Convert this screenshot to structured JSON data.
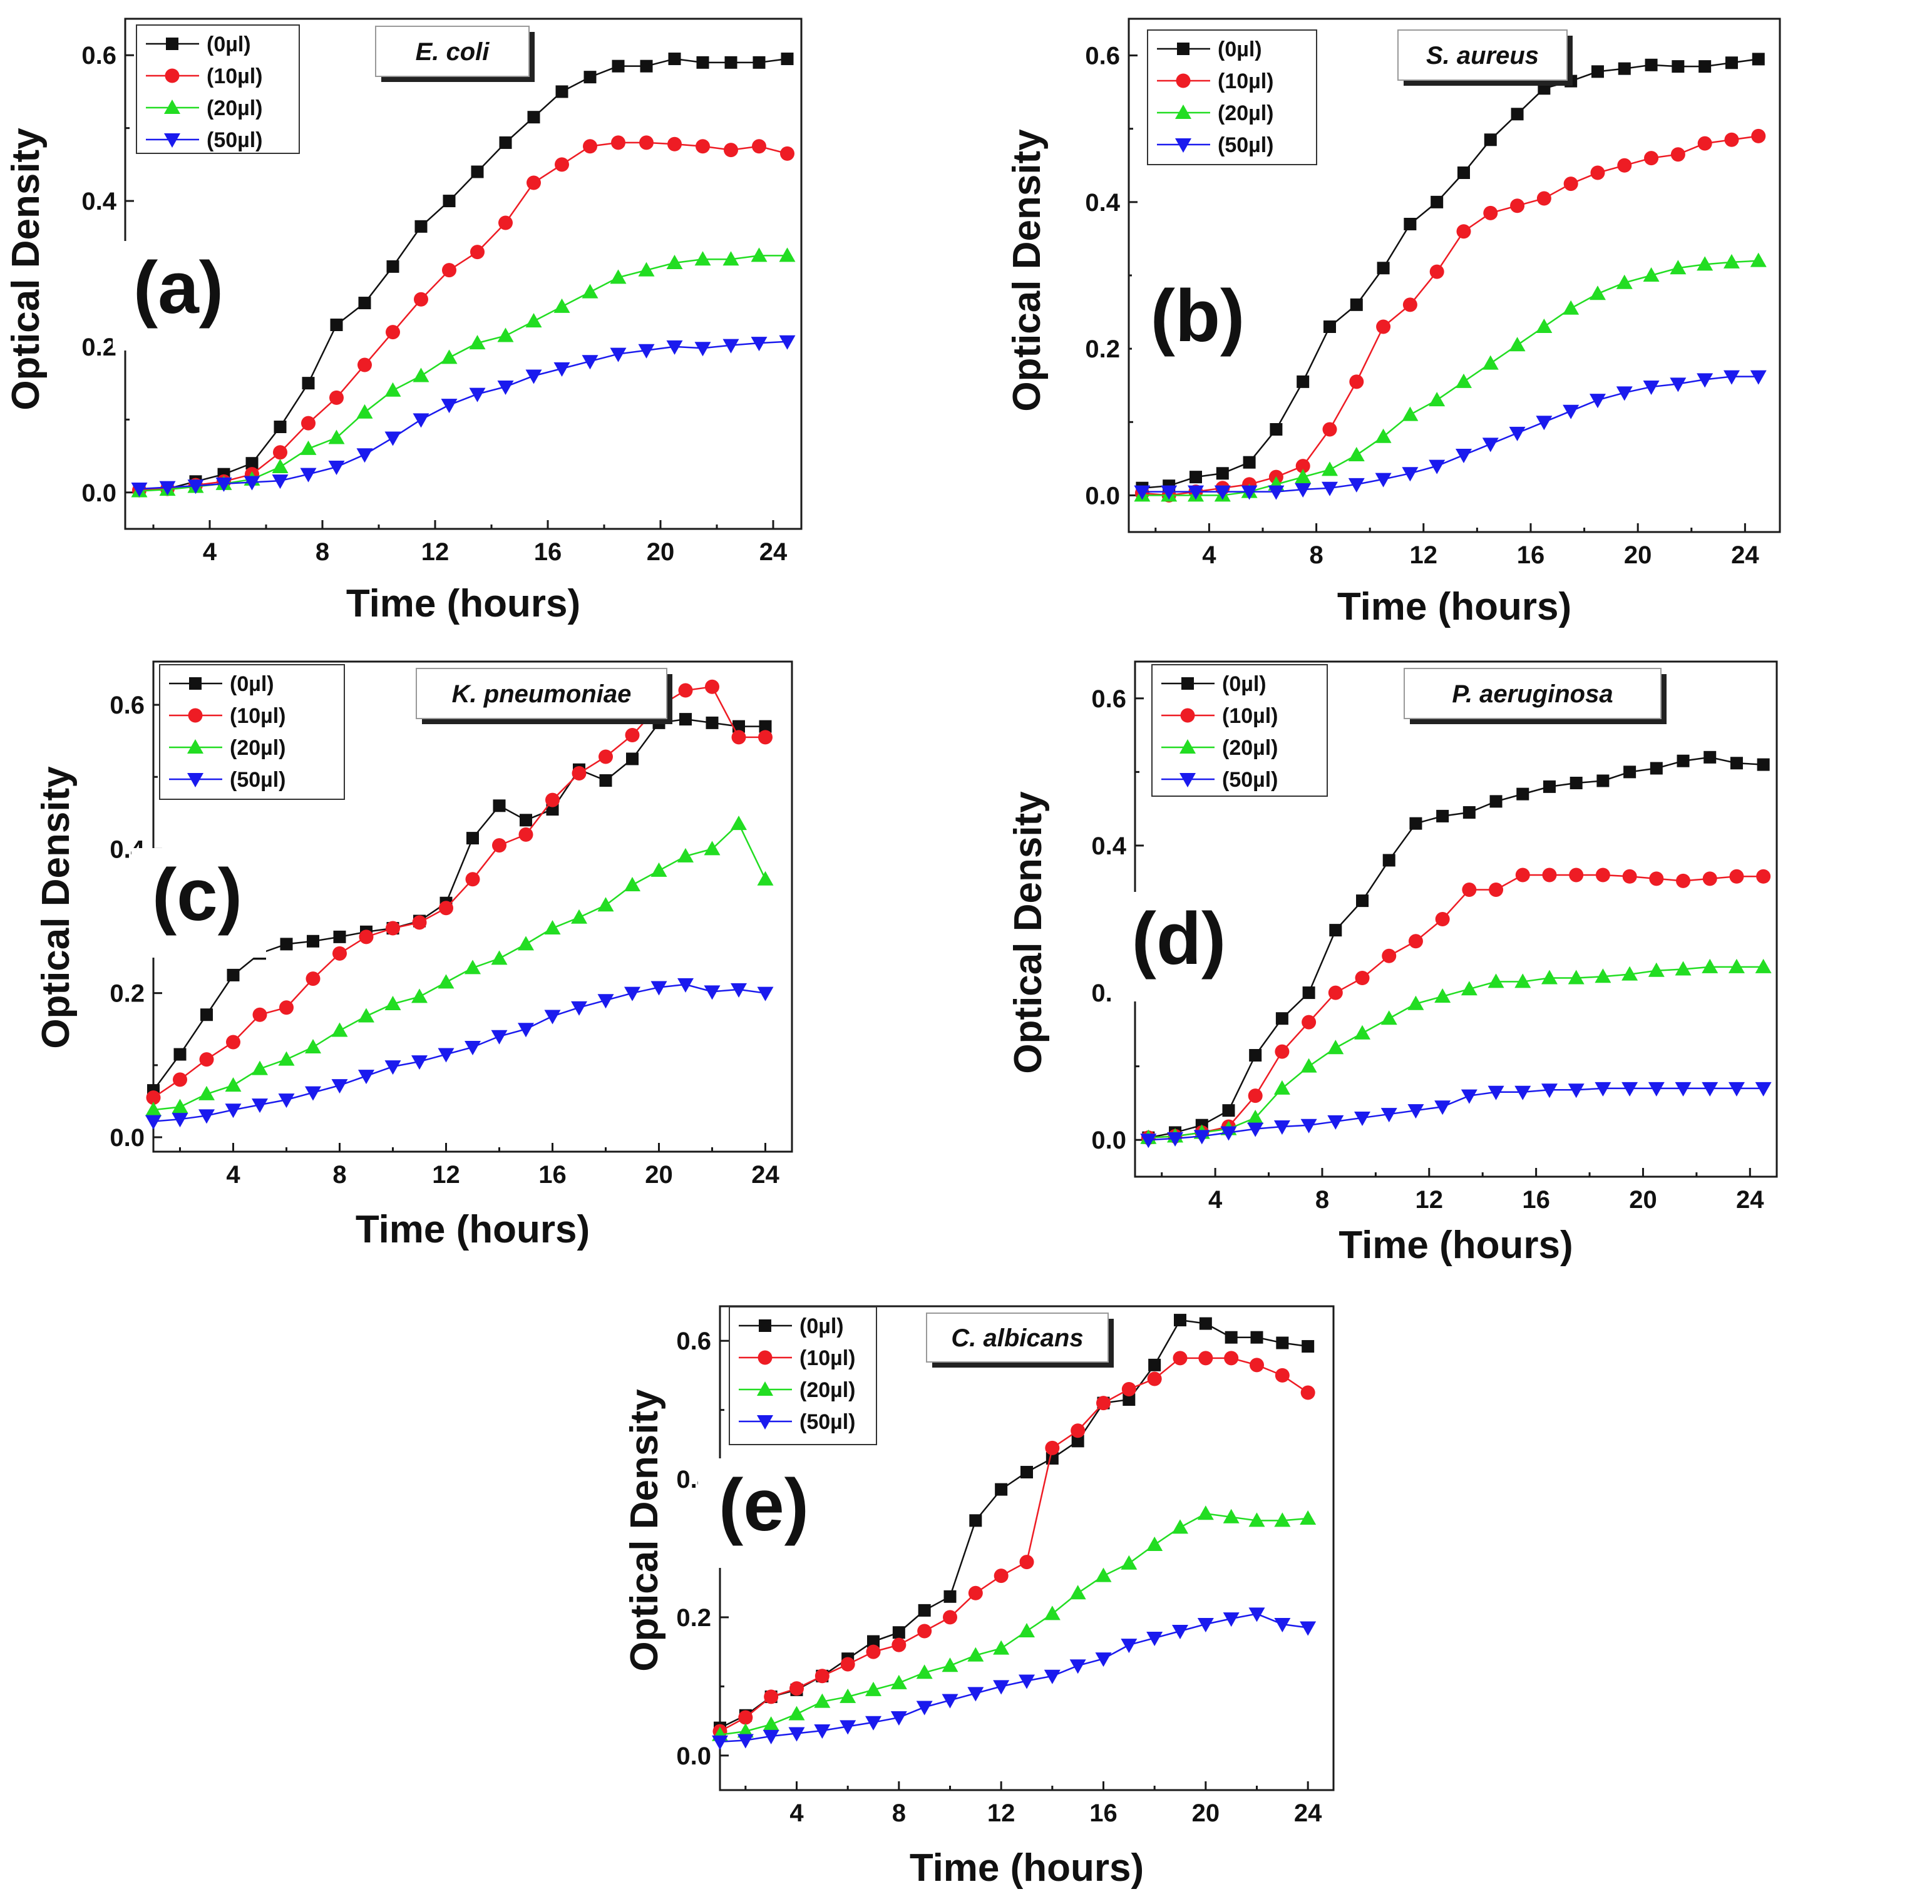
{
  "colors": {
    "0ul": "#111111",
    "10ul": "#ee1c24",
    "20ul": "#22dd22",
    "50ul": "#1a1aee"
  },
  "chart_data": [
    {
      "type": "line",
      "panel_label": "(a)",
      "species": "E. coli",
      "xlabel": "Time (hours)",
      "ylabel": "Optical Density",
      "xlim": [
        1,
        25
      ],
      "ylim": [
        -0.05,
        0.65
      ],
      "xticks": [
        "4",
        "8",
        "12",
        "16",
        "20",
        "24"
      ],
      "yticks": [
        "0.0",
        "0.2",
        "0.4",
        "0.6"
      ],
      "x": [
        1.5,
        2.5,
        3.5,
        4.5,
        5.5,
        6.5,
        7.5,
        8.5,
        9.5,
        10.5,
        11.5,
        12.5,
        13.5,
        14.5,
        15.5,
        16.5,
        17.5,
        18.5,
        19.5,
        20.5,
        21.5,
        22.5,
        23.5,
        24.5
      ],
      "series": [
        {
          "name": "(0µl)",
          "marker": "square",
          "values": [
            0.003,
            0.005,
            0.015,
            0.025,
            0.04,
            0.09,
            0.15,
            0.23,
            0.26,
            0.31,
            0.365,
            0.4,
            0.44,
            0.48,
            0.515,
            0.55,
            0.57,
            0.585,
            0.585,
            0.595,
            0.59,
            0.59,
            0.59,
            0.595
          ]
        },
        {
          "name": "(10µl)",
          "marker": "circle",
          "values": [
            0.003,
            0.005,
            0.01,
            0.015,
            0.025,
            0.055,
            0.095,
            0.13,
            0.175,
            0.22,
            0.265,
            0.305,
            0.33,
            0.37,
            0.425,
            0.45,
            0.475,
            0.48,
            0.48,
            0.478,
            0.475,
            0.47,
            0.475,
            0.465
          ]
        },
        {
          "name": "(20µl)",
          "marker": "triangle-up",
          "values": [
            0.002,
            0.004,
            0.008,
            0.012,
            0.018,
            0.035,
            0.06,
            0.075,
            0.11,
            0.14,
            0.16,
            0.185,
            0.205,
            0.215,
            0.235,
            0.255,
            0.275,
            0.295,
            0.305,
            0.315,
            0.32,
            0.32,
            0.325,
            0.325
          ]
        },
        {
          "name": "(50µl)",
          "marker": "triangle-down",
          "values": [
            0.005,
            0.007,
            0.009,
            0.012,
            0.014,
            0.016,
            0.025,
            0.035,
            0.052,
            0.075,
            0.1,
            0.12,
            0.135,
            0.145,
            0.16,
            0.17,
            0.18,
            0.19,
            0.195,
            0.2,
            0.198,
            0.202,
            0.205,
            0.207
          ]
        }
      ]
    },
    {
      "type": "line",
      "panel_label": "(b)",
      "species": "S. aureus",
      "xlabel": "Time (hours)",
      "ylabel": "Optical Density",
      "xlim": [
        1,
        25.3
      ],
      "ylim": [
        -0.05,
        0.65
      ],
      "xticks": [
        "4",
        "8",
        "12",
        "16",
        "20",
        "24"
      ],
      "yticks": [
        "0.0",
        "0.2",
        "0.4",
        "0.6"
      ],
      "x": [
        1.5,
        2.5,
        3.5,
        4.5,
        5.5,
        6.5,
        7.5,
        8.5,
        9.5,
        10.5,
        11.5,
        12.5,
        13.5,
        14.5,
        15.5,
        16.5,
        17.5,
        18.5,
        19.5,
        20.5,
        21.5,
        22.5,
        23.5,
        24.5
      ],
      "series": [
        {
          "name": "(0µl)",
          "marker": "square",
          "values": [
            0.01,
            0.013,
            0.025,
            0.03,
            0.045,
            0.09,
            0.155,
            0.23,
            0.26,
            0.31,
            0.37,
            0.4,
            0.44,
            0.485,
            0.52,
            0.555,
            0.565,
            0.578,
            0.582,
            0.587,
            0.585,
            0.585,
            0.59,
            0.595
          ]
        },
        {
          "name": "(10µl)",
          "marker": "circle",
          "values": [
            0.003,
            0.0,
            0.005,
            0.01,
            0.015,
            0.025,
            0.04,
            0.09,
            0.155,
            0.23,
            0.26,
            0.305,
            0.36,
            0.385,
            0.395,
            0.405,
            0.425,
            0.44,
            0.45,
            0.46,
            0.465,
            0.48,
            0.485,
            0.49
          ]
        },
        {
          "name": "(20µl)",
          "marker": "triangle-up",
          "values": [
            0.0,
            0.0,
            0.0,
            0.0,
            0.005,
            0.015,
            0.025,
            0.035,
            0.055,
            0.08,
            0.11,
            0.13,
            0.155,
            0.18,
            0.205,
            0.23,
            0.255,
            0.275,
            0.29,
            0.3,
            0.31,
            0.315,
            0.318,
            0.32
          ]
        },
        {
          "name": "(50µl)",
          "marker": "triangle-down",
          "values": [
            0.005,
            0.005,
            0.005,
            0.005,
            0.005,
            0.005,
            0.008,
            0.01,
            0.015,
            0.022,
            0.03,
            0.04,
            0.055,
            0.07,
            0.085,
            0.1,
            0.115,
            0.13,
            0.14,
            0.148,
            0.152,
            0.158,
            0.162,
            0.162
          ]
        }
      ]
    },
    {
      "type": "line",
      "panel_label": "(c)",
      "species": "K. pneumoniae",
      "xlabel": "Time (hours)",
      "ylabel": "Optical Density",
      "xlim": [
        1,
        25
      ],
      "ylim": [
        -0.02,
        0.66
      ],
      "xticks": [
        "4",
        "8",
        "12",
        "16",
        "20",
        "24"
      ],
      "yticks": [
        "0.0",
        "0.2",
        "0.4",
        "0.6"
      ],
      "x": [
        1,
        2,
        3,
        4,
        5,
        6,
        7,
        8,
        9,
        10,
        11,
        12,
        13,
        14,
        15,
        16,
        17,
        18,
        19,
        20,
        21,
        22,
        23,
        24
      ],
      "series": [
        {
          "name": "(0µl)",
          "marker": "square",
          "values": [
            0.065,
            0.115,
            0.17,
            0.225,
            0.255,
            0.268,
            0.272,
            0.278,
            0.285,
            0.29,
            0.3,
            0.325,
            0.415,
            0.46,
            0.44,
            0.455,
            0.51,
            0.495,
            0.525,
            0.575,
            0.58,
            0.575,
            0.57,
            0.57
          ]
        },
        {
          "name": "(10µl)",
          "marker": "circle",
          "values": [
            0.055,
            0.08,
            0.108,
            0.132,
            0.17,
            0.18,
            0.22,
            0.255,
            0.278,
            0.29,
            0.298,
            0.318,
            0.358,
            0.405,
            0.42,
            0.468,
            0.505,
            0.528,
            0.558,
            0.598,
            0.62,
            0.625,
            0.555,
            0.555
          ]
        },
        {
          "name": "(20µl)",
          "marker": "triangle-up",
          "values": [
            0.038,
            0.042,
            0.06,
            0.072,
            0.095,
            0.108,
            0.125,
            0.148,
            0.168,
            0.185,
            0.195,
            0.215,
            0.235,
            0.248,
            0.268,
            0.29,
            0.305,
            0.322,
            0.35,
            0.37,
            0.39,
            0.4,
            0.435,
            0.358
          ]
        },
        {
          "name": "(50µl)",
          "marker": "triangle-down",
          "values": [
            0.022,
            0.025,
            0.03,
            0.038,
            0.045,
            0.052,
            0.062,
            0.072,
            0.085,
            0.098,
            0.105,
            0.115,
            0.125,
            0.14,
            0.15,
            0.168,
            0.18,
            0.19,
            0.2,
            0.208,
            0.212,
            0.202,
            0.205,
            0.2
          ]
        }
      ]
    },
    {
      "type": "line",
      "panel_label": "(d)",
      "species": "P. aeruginosa",
      "xlabel": "Time (hours)",
      "ylabel": "Optical Density",
      "xlim": [
        1,
        25
      ],
      "ylim": [
        -0.05,
        0.65
      ],
      "xticks": [
        "4",
        "8",
        "12",
        "16",
        "20",
        "24"
      ],
      "yticks": [
        "0.0",
        "0.2",
        "0.4",
        "0.6"
      ],
      "x": [
        1.5,
        2.5,
        3.5,
        4.5,
        5.5,
        6.5,
        7.5,
        8.5,
        9.5,
        10.5,
        11.5,
        12.5,
        13.5,
        14.5,
        15.5,
        16.5,
        17.5,
        18.5,
        19.5,
        20.5,
        21.5,
        22.5,
        23.5,
        24.5
      ],
      "series": [
        {
          "name": "(0µl)",
          "marker": "square",
          "values": [
            0.003,
            0.01,
            0.02,
            0.04,
            0.115,
            0.165,
            0.2,
            0.285,
            0.325,
            0.38,
            0.43,
            0.44,
            0.445,
            0.46,
            0.47,
            0.48,
            0.485,
            0.488,
            0.5,
            0.505,
            0.515,
            0.52,
            0.512,
            0.51
          ]
        },
        {
          "name": "(10µl)",
          "marker": "circle",
          "values": [
            0.003,
            0.005,
            0.01,
            0.018,
            0.06,
            0.12,
            0.16,
            0.2,
            0.22,
            0.25,
            0.27,
            0.3,
            0.34,
            0.34,
            0.36,
            0.36,
            0.36,
            0.36,
            0.358,
            0.355,
            0.352,
            0.355,
            0.358,
            0.358
          ]
        },
        {
          "name": "(20µl)",
          "marker": "triangle-up",
          "values": [
            0.003,
            0.005,
            0.01,
            0.015,
            0.03,
            0.07,
            0.1,
            0.125,
            0.145,
            0.165,
            0.185,
            0.195,
            0.205,
            0.215,
            0.215,
            0.22,
            0.22,
            0.222,
            0.225,
            0.23,
            0.232,
            0.235,
            0.235,
            0.235
          ]
        },
        {
          "name": "(50µl)",
          "marker": "triangle-down",
          "values": [
            0.0,
            0.002,
            0.005,
            0.01,
            0.015,
            0.018,
            0.02,
            0.025,
            0.03,
            0.035,
            0.04,
            0.045,
            0.06,
            0.065,
            0.065,
            0.068,
            0.068,
            0.07,
            0.07,
            0.07,
            0.07,
            0.07,
            0.07,
            0.07
          ]
        }
      ]
    },
    {
      "type": "line",
      "panel_label": "(e)",
      "species": "C. albicans",
      "xlabel": "Time (hours)",
      "ylabel": "Optical Density",
      "xlim": [
        1,
        25
      ],
      "ylim": [
        -0.05,
        0.65
      ],
      "xticks": [
        "4",
        "8",
        "12",
        "16",
        "20",
        "24"
      ],
      "yticks": [
        "0.0",
        "0.2",
        "0.4",
        "0.6"
      ],
      "x": [
        1,
        2,
        3,
        4,
        5,
        6,
        7,
        8,
        9,
        10,
        11,
        12,
        13,
        14,
        15,
        16,
        17,
        18,
        19,
        20,
        21,
        22,
        23,
        24
      ],
      "series": [
        {
          "name": "(0µl)",
          "marker": "square",
          "values": [
            0.04,
            0.058,
            0.085,
            0.095,
            0.115,
            0.14,
            0.165,
            0.178,
            0.21,
            0.23,
            0.34,
            0.385,
            0.41,
            0.43,
            0.455,
            0.51,
            0.515,
            0.565,
            0.63,
            0.625,
            0.605,
            0.605,
            0.597,
            0.592
          ]
        },
        {
          "name": "(10µl)",
          "marker": "circle",
          "values": [
            0.035,
            0.055,
            0.085,
            0.097,
            0.115,
            0.132,
            0.15,
            0.16,
            0.18,
            0.2,
            0.235,
            0.26,
            0.28,
            0.445,
            0.47,
            0.51,
            0.53,
            0.545,
            0.575,
            0.575,
            0.575,
            0.565,
            0.55,
            0.525
          ]
        },
        {
          "name": "(20µl)",
          "marker": "triangle-up",
          "values": [
            0.03,
            0.035,
            0.045,
            0.06,
            0.078,
            0.085,
            0.095,
            0.105,
            0.12,
            0.13,
            0.145,
            0.155,
            0.18,
            0.205,
            0.235,
            0.26,
            0.278,
            0.305,
            0.33,
            0.35,
            0.345,
            0.34,
            0.34,
            0.343
          ]
        },
        {
          "name": "(50µl)",
          "marker": "triangle-down",
          "values": [
            0.02,
            0.022,
            0.028,
            0.032,
            0.036,
            0.042,
            0.048,
            0.055,
            0.07,
            0.08,
            0.09,
            0.1,
            0.108,
            0.115,
            0.13,
            0.14,
            0.16,
            0.17,
            0.18,
            0.19,
            0.198,
            0.205,
            0.19,
            0.185
          ]
        }
      ]
    }
  ]
}
